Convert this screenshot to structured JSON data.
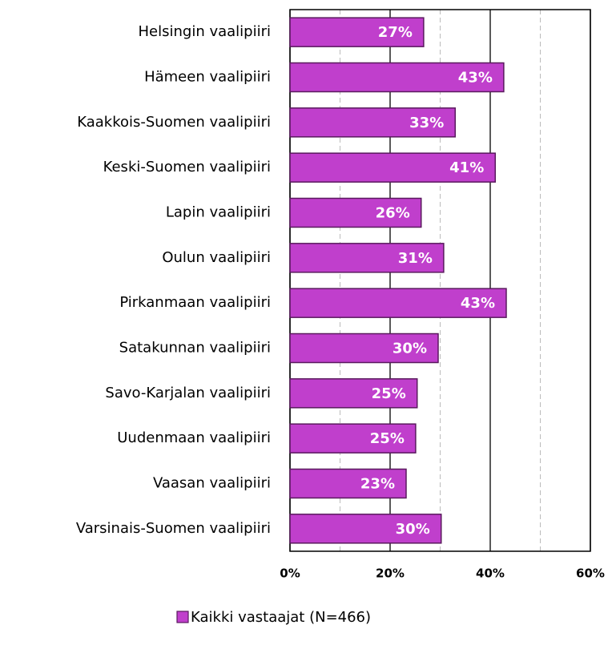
{
  "chart_data": {
    "type": "barh",
    "categories": [
      "Helsingin vaalipiiri",
      "Hämeen vaalipiiri",
      "Kaakkois-Suomen vaalipiiri",
      "Keski-Suomen vaalipiiri",
      "Lapin vaalipiiri",
      "Oulun vaalipiiri",
      "Pirkanmaan vaalipiiri",
      "Satakunnan vaalipiiri",
      "Savo-Karjalan vaalipiiri",
      "Uudenmaan vaalipiiri",
      "Vaasan vaalipiiri",
      "Varsinais-Suomen vaalipiiri"
    ],
    "series": [
      {
        "name": "Kaikki vastaajat (N=466)",
        "color": "#c03fcc",
        "values": [
          26.7,
          42.7,
          33,
          41,
          26.2,
          30.7,
          43.2,
          29.6,
          25.4,
          25.1,
          23.2,
          30.2
        ],
        "value_labels": [
          "27%",
          "43%",
          "33%",
          "41%",
          "26%",
          "31%",
          "43%",
          "30%",
          "25%",
          "25%",
          "23%",
          "30%"
        ]
      }
    ],
    "xlim": [
      0,
      60
    ],
    "xticks": [
      {
        "value": 0,
        "label": "0%"
      },
      {
        "value": 20,
        "label": "20%"
      },
      {
        "value": 40,
        "label": "40%"
      },
      {
        "value": 60,
        "label": "60%"
      }
    ],
    "minor_xticks": [
      10,
      30,
      50
    ],
    "grid": true,
    "legend": "bottom"
  }
}
